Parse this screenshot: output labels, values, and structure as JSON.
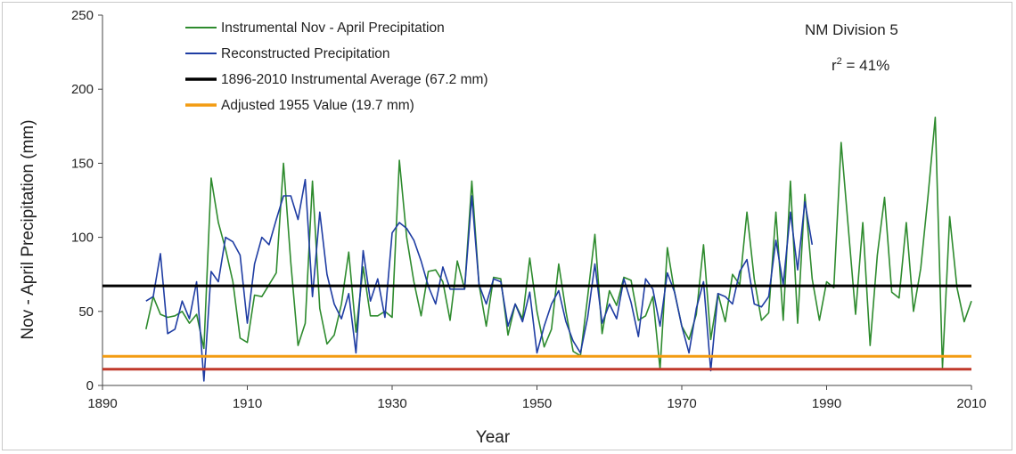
{
  "chart_data": {
    "type": "line",
    "xlabel": "Year",
    "ylabel": "Nov - April Precipitation (mm)",
    "xlim": [
      1890,
      2010
    ],
    "ylim": [
      0,
      250
    ],
    "xticks": [
      1890,
      1910,
      1930,
      1950,
      1970,
      1990,
      2010
    ],
    "yticks": [
      0,
      50,
      100,
      150,
      200,
      250
    ],
    "grid": false,
    "legend_position": "top-left",
    "series": [
      {
        "name": "Instrumental Nov - April Precipitation",
        "color": "#2e8b2e",
        "x": [
          1896,
          1897,
          1898,
          1899,
          1900,
          1901,
          1902,
          1903,
          1904,
          1905,
          1906,
          1907,
          1908,
          1909,
          1910,
          1911,
          1912,
          1913,
          1914,
          1915,
          1916,
          1917,
          1918,
          1919,
          1920,
          1921,
          1922,
          1923,
          1924,
          1925,
          1926,
          1927,
          1928,
          1929,
          1930,
          1931,
          1932,
          1933,
          1934,
          1935,
          1936,
          1937,
          1938,
          1939,
          1940,
          1941,
          1942,
          1943,
          1944,
          1945,
          1946,
          1947,
          1948,
          1949,
          1950,
          1951,
          1952,
          1953,
          1954,
          1955,
          1956,
          1957,
          1958,
          1959,
          1960,
          1961,
          1962,
          1963,
          1964,
          1965,
          1966,
          1967,
          1968,
          1969,
          1970,
          1971,
          1972,
          1973,
          1974,
          1975,
          1976,
          1977,
          1978,
          1979,
          1980,
          1981,
          1982,
          1983,
          1984,
          1985,
          1986,
          1987,
          1988,
          1989,
          1990,
          1991,
          1992,
          1993,
          1994,
          1995,
          1996,
          1997,
          1998,
          1999,
          2000,
          2001,
          2002,
          2003,
          2004,
          2005,
          2006,
          2007,
          2008,
          2009,
          2010
        ],
        "values": [
          38,
          60,
          48,
          46,
          47,
          50,
          42,
          48,
          25,
          140,
          110,
          92,
          70,
          32,
          29,
          61,
          60,
          68,
          76,
          150,
          83,
          27,
          42,
          138,
          52,
          28,
          34,
          55,
          90,
          36,
          80,
          47,
          47,
          50,
          46,
          152,
          100,
          70,
          47,
          77,
          78,
          70,
          44,
          84,
          65,
          138,
          68,
          40,
          73,
          72,
          34,
          55,
          45,
          86,
          50,
          26,
          38,
          82,
          50,
          23,
          20,
          60,
          102,
          35,
          64,
          54,
          73,
          71,
          44,
          47,
          60,
          11,
          93,
          63,
          40,
          31,
          48,
          95,
          31,
          62,
          43,
          75,
          68,
          117,
          72,
          44,
          49,
          117,
          44,
          138,
          42,
          129,
          72,
          44,
          70,
          66,
          164,
          106,
          48,
          110,
          27,
          88,
          127,
          63,
          59,
          110,
          50,
          79,
          128,
          181,
          12,
          114,
          66,
          43,
          57
        ]
      },
      {
        "name": "Reconstructed Precipitation",
        "color": "#1f3da3",
        "x": [
          1896,
          1897,
          1898,
          1899,
          1900,
          1901,
          1902,
          1903,
          1904,
          1905,
          1906,
          1907,
          1908,
          1909,
          1910,
          1911,
          1912,
          1913,
          1914,
          1915,
          1916,
          1917,
          1918,
          1919,
          1920,
          1921,
          1922,
          1923,
          1924,
          1925,
          1926,
          1927,
          1928,
          1929,
          1930,
          1931,
          1932,
          1933,
          1934,
          1935,
          1936,
          1937,
          1938,
          1939,
          1940,
          1941,
          1942,
          1943,
          1944,
          1945,
          1946,
          1947,
          1948,
          1949,
          1950,
          1951,
          1952,
          1953,
          1954,
          1955,
          1956,
          1957,
          1958,
          1959,
          1960,
          1961,
          1962,
          1963,
          1964,
          1965,
          1966,
          1967,
          1968,
          1969,
          1970,
          1971,
          1972,
          1973,
          1974,
          1975,
          1976,
          1977,
          1978,
          1979,
          1980,
          1981,
          1982,
          1983,
          1984,
          1985,
          1986,
          1987,
          1988
        ],
        "values": [
          57,
          60,
          89,
          35,
          38,
          57,
          45,
          70,
          3,
          77,
          70,
          100,
          97,
          88,
          42,
          82,
          100,
          95,
          112,
          128,
          128,
          112,
          139,
          60,
          117,
          75,
          55,
          45,
          62,
          22,
          91,
          57,
          72,
          46,
          103,
          110,
          106,
          98,
          84,
          67,
          55,
          80,
          65,
          65,
          65,
          128,
          68,
          55,
          72,
          70,
          40,
          55,
          43,
          63,
          22,
          40,
          55,
          64,
          43,
          30,
          22,
          46,
          82,
          42,
          55,
          45,
          72,
          56,
          33,
          72,
          65,
          40,
          76,
          63,
          40,
          22,
          52,
          70,
          10,
          62,
          60,
          55,
          77,
          85,
          55,
          53,
          60,
          98,
          68,
          117,
          78,
          124,
          95
        ]
      }
    ],
    "reference_lines": [
      {
        "name": "1896-2010 Instrumental Average (67.2 mm)",
        "value": 67.2,
        "color": "#000000"
      },
      {
        "name": "Adjusted 1955 Value (19.7 mm)",
        "value": 19.7,
        "color": "#f39c12"
      },
      {
        "name": "",
        "value": 11,
        "color": "#c0392b"
      }
    ],
    "annotations": {
      "division": "NM Division 5",
      "r2_prefix": "r",
      "r2_sup": "2",
      "r2_suffix": " = 41%"
    }
  }
}
